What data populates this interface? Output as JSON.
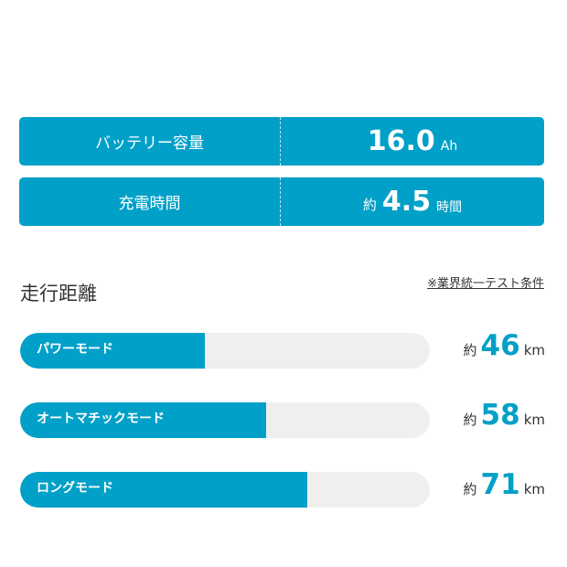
{
  "colors": {
    "accent": "#00a0c8",
    "track": "#efefef",
    "text": "#333333"
  },
  "specs": [
    {
      "label": "バッテリー容量",
      "prefix": "",
      "value": "16.0",
      "unit": "Ah"
    },
    {
      "label": "充電時間",
      "prefix": "約",
      "value": "4.5",
      "unit": "時間"
    }
  ],
  "range_section": {
    "title": "走行距離",
    "note": "※業界統一テスト条件",
    "modes": [
      {
        "label": "パワーモード",
        "prefix": "約",
        "value": 46,
        "unit": "km",
        "fill_fraction": 0.45
      },
      {
        "label": "オートマチックモード",
        "prefix": "約",
        "value": 58,
        "unit": "km",
        "fill_fraction": 0.6
      },
      {
        "label": "ロングモード",
        "prefix": "約",
        "value": 71,
        "unit": "km",
        "fill_fraction": 0.7
      }
    ]
  }
}
